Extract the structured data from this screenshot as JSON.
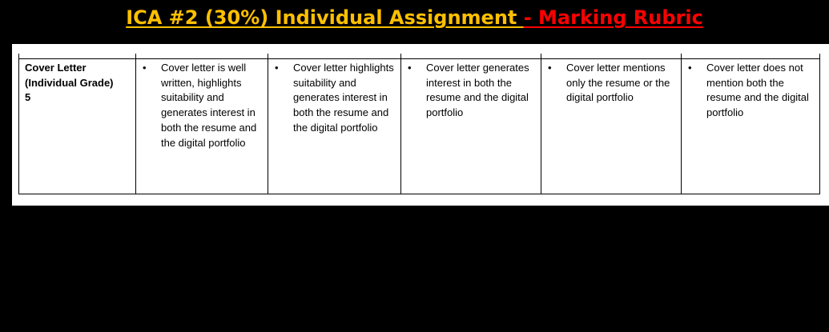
{
  "header": {
    "title_main": "ICA #2 (30%) Individual Assignment ",
    "title_accent": "- Marking Rubric"
  },
  "rubric": {
    "criterion": {
      "name": "Cover Letter",
      "grade_type": "(Individual Grade)",
      "points": "5"
    },
    "levels": [
      {
        "bullet": "•",
        "text": "Cover letter is well written, highlights suitability and generates interest in both the resume and the digital portfolio"
      },
      {
        "bullet": "•",
        "text": "Cover letter highlights suitability and generates interest in both the resume and the digital portfolio"
      },
      {
        "bullet": "•",
        "text": "Cover letter generates interest in both the resume and the digital portfolio"
      },
      {
        "bullet": "•",
        "text": "Cover letter mentions only the resume or the digital portfolio"
      },
      {
        "bullet": "•",
        "text": "Cover letter does not mention both the resume and the digital portfolio"
      }
    ]
  }
}
